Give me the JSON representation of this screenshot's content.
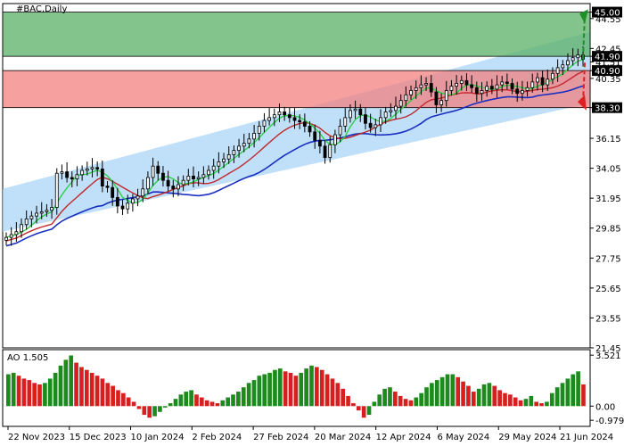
{
  "chart_data": [
    {
      "type": "candlestick",
      "title": "#BAC,Daily",
      "y_ticks": [
        "45.00",
        "44.55",
        "42.45",
        "41.90",
        "41.51",
        "40.90",
        "40.35",
        "38.30",
        "36.15",
        "34.05",
        "31.95",
        "29.85",
        "27.75",
        "25.65",
        "23.55",
        "21.45"
      ],
      "ylim": [
        21.45,
        45.6
      ],
      "x_tick_labels": [
        "22 Nov 2023",
        "15 Dec 2023",
        "10 Jan 2024",
        "2 Feb 2024",
        "27 Feb 2024",
        "20 Mar 2024",
        "12 Apr 2024",
        "6 May 2024",
        "29 May 2024",
        "21 Jun 2024"
      ],
      "resistance_zone": [
        41.9,
        45.0
      ],
      "support_zone": [
        38.3,
        40.9
      ],
      "highlighted_levels": [
        "45.00",
        "41.90",
        "40.90",
        "38.30"
      ],
      "channel": {
        "start_low": 29.6,
        "start_high": 32.6,
        "end_low": 38.6,
        "end_high": 43.6
      },
      "close_values": [
        29.2,
        29.4,
        29.6,
        30.1,
        30.5,
        30.7,
        30.9,
        31.0,
        31.1,
        31.3,
        33.7,
        33.8,
        33.4,
        33.3,
        33.6,
        33.9,
        34.0,
        34.1,
        34.0,
        32.8,
        32.7,
        32.0,
        31.4,
        31.2,
        31.6,
        31.9,
        32.1,
        32.6,
        33.4,
        34.2,
        33.7,
        33.2,
        32.8,
        32.6,
        32.9,
        33.2,
        33.5,
        33.3,
        33.4,
        33.6,
        33.9,
        34.2,
        34.5,
        34.7,
        35.0,
        35.3,
        35.6,
        35.8,
        36.1,
        36.5,
        37.0,
        37.4,
        37.6,
        37.8,
        38.0,
        37.8,
        37.6,
        37.4,
        37.3,
        37.0,
        36.6,
        36.0,
        35.6,
        34.8,
        35.7,
        36.4,
        37.0,
        37.6,
        38.1,
        38.2,
        37.8,
        37.2,
        36.9,
        37.1,
        37.6,
        38.0,
        38.1,
        38.4,
        38.8,
        39.2,
        39.5,
        39.7,
        39.9,
        40.0,
        39.4,
        38.5,
        38.8,
        39.5,
        39.8,
        40.0,
        40.2,
        39.9,
        39.7,
        39.3,
        39.5,
        39.8,
        39.6,
        39.9,
        40.1,
        40.0,
        39.6,
        39.3,
        39.5,
        39.7,
        40.1,
        40.4,
        39.9,
        40.3,
        40.7,
        41.1,
        41.3,
        41.6,
        41.8,
        42.0,
        41.7
      ],
      "green_ma": "fast moving average",
      "ao": {
        "label": "AO 1.505",
        "y_ticks": [
          "3.521",
          "0.00",
          "-0.979"
        ],
        "values": [
          2.2,
          2.3,
          2.1,
          1.9,
          1.8,
          1.6,
          1.5,
          1.6,
          1.9,
          2.3,
          2.8,
          3.2,
          3.5,
          3.0,
          2.7,
          2.5,
          2.3,
          2.1,
          1.9,
          1.6,
          1.4,
          1.1,
          0.9,
          0.6,
          0.3,
          -0.2,
          -0.6,
          -0.8,
          -0.7,
          -0.4,
          -0.1,
          0.2,
          0.5,
          0.8,
          1.0,
          1.1,
          0.8,
          0.6,
          0.4,
          0.3,
          0.2,
          0.4,
          0.6,
          0.8,
          1.0,
          1.3,
          1.6,
          1.8,
          2.1,
          2.2,
          2.3,
          2.5,
          2.6,
          2.4,
          2.3,
          2.1,
          2.3,
          2.6,
          2.8,
          2.7,
          2.5,
          2.2,
          1.9,
          1.6,
          1.2,
          0.7,
          0.2,
          -0.3,
          -0.8,
          -0.6,
          0.3,
          0.8,
          1.2,
          1.3,
          1.0,
          0.7,
          0.5,
          0.4,
          0.6,
          0.9,
          1.3,
          1.6,
          1.8,
          2.0,
          2.2,
          2.2,
          2.0,
          1.7,
          1.4,
          1.0,
          1.2,
          1.5,
          1.6,
          1.4,
          1.1,
          0.9,
          0.8,
          0.6,
          0.4,
          0.5,
          0.7,
          0.3,
          0.2,
          0.3,
          0.9,
          1.3,
          1.6,
          1.9,
          2.2,
          2.4,
          1.5
        ]
      }
    }
  ]
}
